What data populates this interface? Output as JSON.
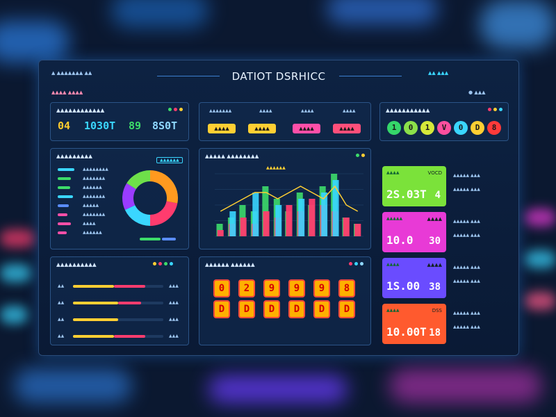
{
  "title": "DATIOT DSRHICC",
  "header": {
    "left_text": "▲ ▲▲▲▲▲▲▲ ▲▲",
    "right_text": "▲▲ ▲▲▲",
    "sub_left": "▲▲▲▲ ▲▲▲▲"
  },
  "kpi_panel": {
    "title": "▲▲▲▲▲▲▲▲▲▲▲▲",
    "values": [
      {
        "text": "04",
        "color": "#ffcc2e"
      },
      {
        "text": "1030T",
        "color": "#3ad6ff"
      },
      {
        "text": "89",
        "color": "#3ddc6a"
      },
      {
        "text": "8S0T",
        "color": "#8fd8ff"
      }
    ]
  },
  "pill_panel": {
    "headers": [
      "▲▲▲▲▲▲▲",
      "▲▲▲▲",
      "▲▲▲▲",
      "▲▲▲▲"
    ],
    "pills": [
      {
        "text": "▲▲▲▲",
        "color": "#ffcf33"
      },
      {
        "text": "▲▲▲▲",
        "color": "#ffcf33"
      },
      {
        "text": "▲▲▲▲",
        "color": "#ff4fa8"
      },
      {
        "text": "▲▲▲▲",
        "color": "#ff4f7a"
      }
    ]
  },
  "circles_panel": {
    "title": "▲▲▲▲▲▲▲▲▲▲▲",
    "circles": [
      {
        "text": "1",
        "color": "#35d66a"
      },
      {
        "text": "0",
        "color": "#8be04a"
      },
      {
        "text": "1",
        "color": "#d5e83a"
      },
      {
        "text": "V",
        "color": "#ff4f9e"
      },
      {
        "text": "0",
        "color": "#3ad6ff"
      },
      {
        "text": "D",
        "color": "#ffcf33"
      },
      {
        "text": "8",
        "color": "#ff3a3a"
      }
    ]
  },
  "list_panel": {
    "title": "▲▲▲▲▲▲▲▲▲",
    "badge": "▲▲▲▲▲▲",
    "rows": [
      {
        "label": "▲▲▲▲▲▲▲▲",
        "color": "#3ad6ff",
        "fill": 0.75
      },
      {
        "label": "▲▲▲▲▲▲▲",
        "color": "#3ddc6a",
        "fill": 0.6
      },
      {
        "label": "▲▲▲▲▲▲",
        "color": "#3ddc6a",
        "fill": 0.55
      },
      {
        "label": "▲▲▲▲▲▲▲",
        "color": "#3ad6ff",
        "fill": 0.7
      },
      {
        "label": "▲▲▲▲▲",
        "color": "#5a8dff",
        "fill": 0.5
      },
      {
        "label": "▲▲▲▲▲▲▲",
        "color": "#ff4fa8",
        "fill": 0.45
      },
      {
        "label": "▲▲▲▲",
        "color": "#ff4fa8",
        "fill": 0.6
      },
      {
        "label": "▲▲▲▲▲▲",
        "color": "#ff4fa8",
        "fill": 0.4
      }
    ],
    "donut": [
      {
        "value": 28,
        "color": "#ff9a1f"
      },
      {
        "value": 22,
        "color": "#ff3c6e"
      },
      {
        "value": 18,
        "color": "#3ad6ff"
      },
      {
        "value": 16,
        "color": "#9a3cff"
      },
      {
        "value": 16,
        "color": "#6ee04a"
      }
    ]
  },
  "chart_data": {
    "type": "bar",
    "title": "▲▲▲▲▲ ▲▲▲▲▲▲▲▲",
    "callout": "▲▲▲▲▲▲",
    "categories": [
      "",
      "",
      "",
      "",
      "",
      "",
      "",
      "",
      "",
      "",
      "",
      "",
      ""
    ],
    "series": [
      {
        "color": "#3ddc6a",
        "values": [
          2,
          3,
          5,
          4,
          8,
          6,
          4,
          7,
          5,
          8,
          10,
          3,
          2
        ]
      },
      {
        "color": "#ff3c6e",
        "values": [
          1,
          2,
          3,
          2,
          4,
          3,
          5,
          4,
          6,
          5,
          4,
          3,
          2
        ]
      },
      {
        "color": "#3ad6ff",
        "values": [
          0,
          4,
          0,
          7,
          0,
          5,
          0,
          6,
          0,
          7,
          9,
          0,
          0
        ]
      }
    ],
    "line": [
      4,
      5,
      6,
      7,
      7,
      6,
      7,
      8,
      7,
      6,
      8,
      5,
      4
    ],
    "ylim": [
      0,
      10
    ]
  },
  "progress_panel": {
    "title": "▲▲▲▲▲▲▲▲▲▲",
    "rows": [
      {
        "label": "▲▲",
        "yellow": 0.45,
        "red": 0.35,
        "right": "▲▲▲"
      },
      {
        "label": "▲▲",
        "yellow": 0.5,
        "red": 0.25,
        "right": "▲▲▲"
      },
      {
        "label": "▲▲",
        "yellow": 0.5,
        "red": 0.0,
        "right": "▲▲▲"
      },
      {
        "label": "▲▲",
        "yellow": 0.45,
        "red": 0.35,
        "right": "▲▲▲"
      }
    ]
  },
  "tiles_panel": {
    "title": "▲▲▲▲▲▲ ▲▲▲▲▲▲",
    "top": [
      "0",
      "2",
      "9",
      "9",
      "9",
      "8"
    ],
    "bottom": [
      "D",
      "D",
      "D",
      "D",
      "D",
      "D"
    ]
  },
  "stat_cards": [
    {
      "color": "#7be23a",
      "cap": "▲▲▲▲",
      "cap2": "VOCD",
      "value": "2S.03T",
      "value2": "4",
      "side": "▲▲▲▲▲ ▲▲▲"
    },
    {
      "color": "#e83ad6",
      "cap": "▲▲▲▲▲",
      "cap2": "▲▲▲▲",
      "value": "10.0",
      "value2": "30",
      "side": "▲▲▲▲▲ ▲▲▲"
    },
    {
      "color": "#6a4cff",
      "cap": "▲▲▲▲",
      "cap2": "▲▲▲▲",
      "value": "1S.00",
      "value2": "38",
      "side": "▲▲▲▲▲ ▲▲▲"
    },
    {
      "color": "#ff5a2e",
      "cap": "▲▲▲▲",
      "cap2": "DSS",
      "value": "10.00T",
      "value2": "18",
      "side": "▲▲▲▲▲ ▲▲▲"
    }
  ]
}
